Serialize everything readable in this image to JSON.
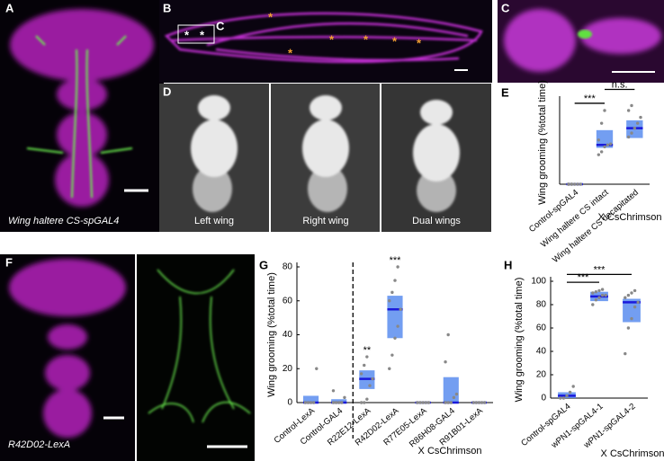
{
  "panels": {
    "A": {
      "label": "A",
      "caption": "Wing haltere CS-spGAL4"
    },
    "B": {
      "label": "B",
      "inset_label": "C",
      "markers": [
        "*",
        "*",
        "*",
        "*",
        "*",
        "*",
        "*",
        "*"
      ]
    },
    "C": {
      "label": "C"
    },
    "D": {
      "label": "D",
      "captions": [
        "Left wing",
        "Right wing",
        "Dual wings"
      ]
    },
    "F": {
      "label": "F",
      "caption": "R42D02-LexA"
    }
  },
  "chart_data": [
    {
      "type": "box",
      "label": "E",
      "ylabel": "Wing grooming (%total time)",
      "note": "X CsChrimson",
      "categories": [
        "Control-spGAL4",
        "Wing haltere CS intact",
        "Wing haltere CS decapitated"
      ],
      "q1": [
        0,
        37,
        47
      ],
      "median": [
        0,
        40,
        57
      ],
      "q3": [
        1,
        55,
        65
      ],
      "points": [
        [
          0,
          0,
          0,
          0,
          0,
          0,
          0
        ],
        [
          30,
          33,
          38,
          40,
          41,
          45,
          62,
          75
        ],
        [
          48,
          52,
          57,
          62,
          68,
          75,
          80
        ]
      ],
      "ylim": [
        0,
        85
      ],
      "box_color": "#5b8def",
      "median_color": "#1a1adb",
      "point_color": "#888888",
      "annotations": [
        {
          "text": "***",
          "between": [
            "Control-spGAL4",
            "Wing haltere CS intact"
          ]
        },
        {
          "text": "n.s.",
          "between": [
            "Wing haltere CS intact",
            "Wing haltere CS decapitated"
          ]
        }
      ]
    },
    {
      "type": "box",
      "label": "G",
      "ylabel": "Wing grooming (%total time)",
      "note": "X CsChrimson",
      "categories": [
        "Control-LexA",
        "Control-GAL4",
        "R22E12-LexA",
        "R42D02-LexA",
        "R77E05-LexA",
        "R86H08-GAL4",
        "R91B01-LexA"
      ],
      "q1": [
        0,
        0,
        8,
        38,
        0,
        0,
        0
      ],
      "median": [
        0,
        0,
        14,
        55,
        0,
        0,
        0
      ],
      "q3": [
        4,
        2,
        19,
        63,
        0,
        15,
        0
      ],
      "points": [
        [
          0,
          0,
          0,
          0,
          20
        ],
        [
          0,
          0,
          0,
          0,
          3,
          7
        ],
        [
          0,
          0,
          2,
          10,
          14,
          17,
          22,
          27
        ],
        [
          20,
          28,
          38,
          45,
          55,
          60,
          65,
          72,
          80
        ],
        [
          0,
          0,
          0,
          0,
          0
        ],
        [
          0,
          0,
          0,
          3,
          5,
          24,
          40
        ],
        [
          0,
          0,
          0,
          0,
          0
        ]
      ],
      "ylim": [
        0,
        80
      ],
      "yticks": [
        0,
        20,
        40,
        60,
        80
      ],
      "box_color": "#5b8def",
      "median_color": "#1a1adb",
      "point_color": "#888888",
      "dashed_divider_after": "Control-GAL4",
      "annotations": [
        {
          "text": "**",
          "over": "R22E12-LexA"
        },
        {
          "text": "***",
          "over": "R42D02-LexA"
        }
      ]
    },
    {
      "type": "box",
      "label": "H",
      "ylabel": "Wing grooming (%total time)",
      "note": "X CsChrimson",
      "categories": [
        "Control-spGAL4",
        "wPN1-spGAL4-1",
        "wPN1-spGAL4-2"
      ],
      "q1": [
        0,
        83,
        65
      ],
      "median": [
        2,
        87,
        82
      ],
      "q3": [
        5,
        91,
        85
      ],
      "points": [
        [
          0,
          0,
          2,
          5,
          10
        ],
        [
          80,
          84,
          86,
          88,
          88,
          90,
          91,
          92,
          93
        ],
        [
          38,
          60,
          68,
          78,
          82,
          86,
          88,
          90,
          92
        ]
      ],
      "ylim": [
        0,
        100
      ],
      "yticks": [
        0,
        20,
        40,
        60,
        80,
        100
      ],
      "box_color": "#5b8def",
      "median_color": "#1a1adb",
      "point_color": "#888888",
      "annotations": [
        {
          "text": "***",
          "between": [
            "Control-spGAL4",
            "wPN1-spGAL4-1"
          ]
        },
        {
          "text": "***",
          "between": [
            "Control-spGAL4",
            "wPN1-spGAL4-2"
          ]
        }
      ]
    }
  ]
}
